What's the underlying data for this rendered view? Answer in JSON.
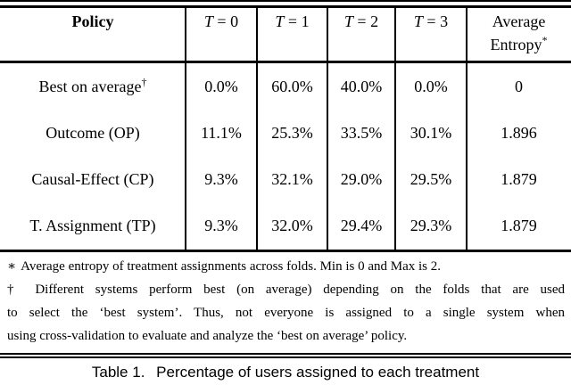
{
  "table": {
    "header": {
      "policy": "Policy",
      "columns": [
        {
          "sym": "T",
          "rest": "= 0"
        },
        {
          "sym": "T",
          "rest": "= 1"
        },
        {
          "sym": "T",
          "rest": "= 2"
        },
        {
          "sym": "T",
          "rest": "= 3"
        }
      ],
      "avg_line1": "Average",
      "avg_line2": "Entropy",
      "avg_marker": "*"
    },
    "rows": [
      {
        "policy": "Best on average",
        "marker": "†",
        "cells": [
          "0.0%",
          "60.0%",
          "40.0%",
          "0.0%",
          "0"
        ]
      },
      {
        "policy": "Outcome (OP)",
        "marker": "",
        "cells": [
          "11.1%",
          "25.3%",
          "33.5%",
          "30.1%",
          "1.896"
        ]
      },
      {
        "policy": "Causal-Effect (CP)",
        "marker": "",
        "cells": [
          "9.3%",
          "32.1%",
          "29.0%",
          "29.5%",
          "1.879"
        ]
      },
      {
        "policy": "T. Assignment (TP)",
        "marker": "",
        "cells": [
          "9.3%",
          "32.0%",
          "29.4%",
          "29.3%",
          "1.879"
        ]
      }
    ]
  },
  "footnotes": {
    "fn1_marker": "∗",
    "fn1_text": "Average entropy of treatment assignments across folds. Min is 0 and Max is 2.",
    "fn2_marker": "†",
    "fn2_line1": "Different systems perform best (on average) depending on the folds that are used",
    "fn2_line2": "to select the ‘best system’. Thus, not everyone is assigned to a single system when",
    "fn2_line3": "using cross-validation to evaluate and analyze the ‘best on average’ policy."
  },
  "caption": {
    "label": "Table 1.",
    "text": "Percentage of users assigned to each treatment"
  },
  "colors": {
    "text": "#000000",
    "background": "#ffffff",
    "rule": "#000000"
  }
}
